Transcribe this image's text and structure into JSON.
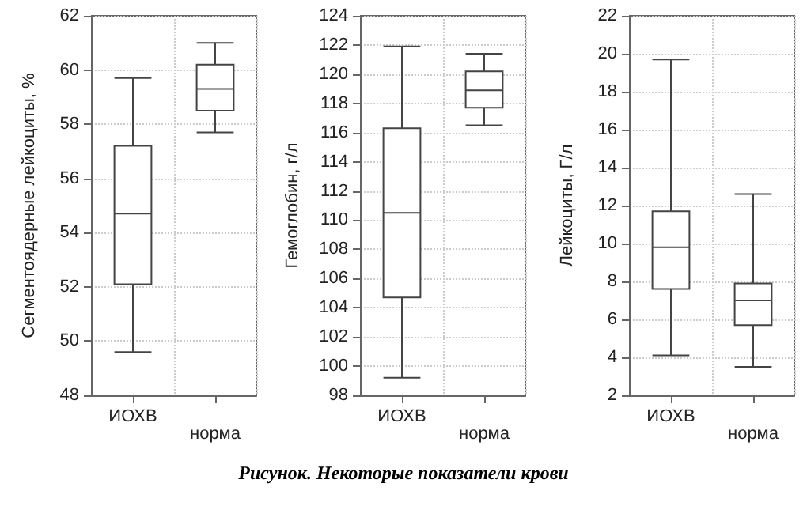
{
  "chart_data": [
    {
      "type": "box",
      "ylabel": "Сегментоядерные лейкоциты, %",
      "categories": [
        "ИОХВ",
        "норма"
      ],
      "ylim": [
        48,
        62
      ],
      "yticks": [
        48,
        50,
        52,
        54,
        56,
        58,
        60,
        62
      ],
      "grid": true,
      "color": "#ffffff",
      "boxes": [
        {
          "low": 49.6,
          "q1": 52.1,
          "median": 54.7,
          "q3": 57.2,
          "high": 59.7
        },
        {
          "low": 57.7,
          "q1": 58.5,
          "median": 59.3,
          "q3": 60.2,
          "high": 61.0
        }
      ],
      "annotations": [
        "Рисунок. Некоторые показатели крови"
      ]
    },
    {
      "type": "box",
      "ylabel": "Гемоглобин, г/л",
      "categories": [
        "ИОХВ",
        "норма"
      ],
      "ylim": [
        98,
        124
      ],
      "yticks": [
        98,
        100,
        102,
        104,
        106,
        108,
        110,
        112,
        114,
        116,
        118,
        120,
        122,
        124
      ],
      "grid": true,
      "color": "#ffffff",
      "boxes": [
        {
          "low": 99.2,
          "q1": 104.7,
          "median": 110.5,
          "q3": 116.3,
          "high": 121.9
        },
        {
          "low": 116.5,
          "q1": 117.7,
          "median": 118.9,
          "q3": 120.2,
          "high": 121.4
        }
      ]
    },
    {
      "type": "box",
      "ylabel": "Лейкоциты, Г/л",
      "categories": [
        "ИОХВ",
        "норма"
      ],
      "ylim": [
        2,
        22
      ],
      "yticks": [
        2,
        4,
        6,
        8,
        10,
        12,
        14,
        16,
        18,
        20,
        22
      ],
      "grid": true,
      "color": "#ffffff",
      "boxes": [
        {
          "low": 4.1,
          "q1": 7.6,
          "median": 9.8,
          "q3": 11.7,
          "high": 19.7
        },
        {
          "low": 3.5,
          "q1": 5.7,
          "median": 7.0,
          "q3": 7.9,
          "high": 12.6
        }
      ]
    }
  ]
}
